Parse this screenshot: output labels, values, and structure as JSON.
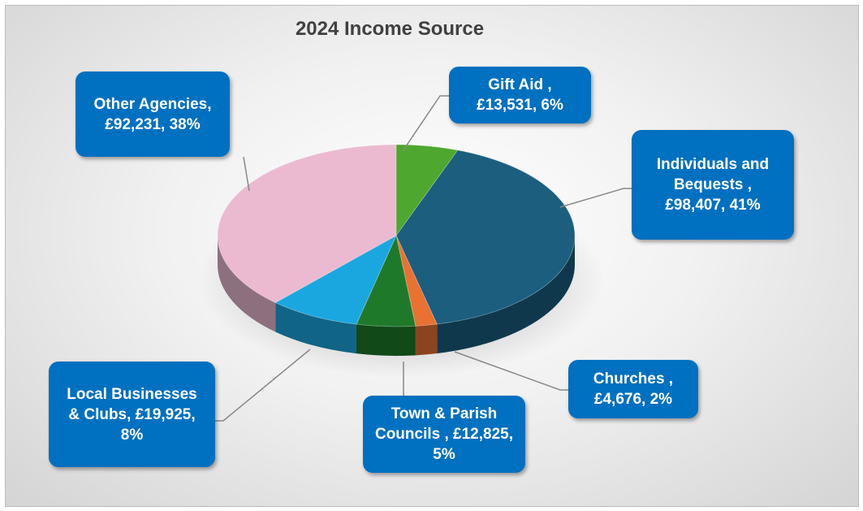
{
  "chart_data": {
    "type": "pie3d",
    "title": "2024 Income Source",
    "values": [
      13531,
      98407,
      4676,
      12825,
      19925,
      92231
    ],
    "value_labels": [
      "Gift Aid , £13,531, 6%",
      "Individuals and Bequests , £98,407, 41%",
      "Churches , £4,676, 2%",
      "Town & Parish Councils , £12,825, 5%",
      "Local Businesses & Clubs, £19,925, 8%",
      "Other Agencies, £92,231, 38%"
    ],
    "colors": [
      "#4ea72e",
      "#1b5e7e",
      "#e97132",
      "#1e7a2a",
      "#1aa7e0",
      "#ebbad0"
    ]
  }
}
